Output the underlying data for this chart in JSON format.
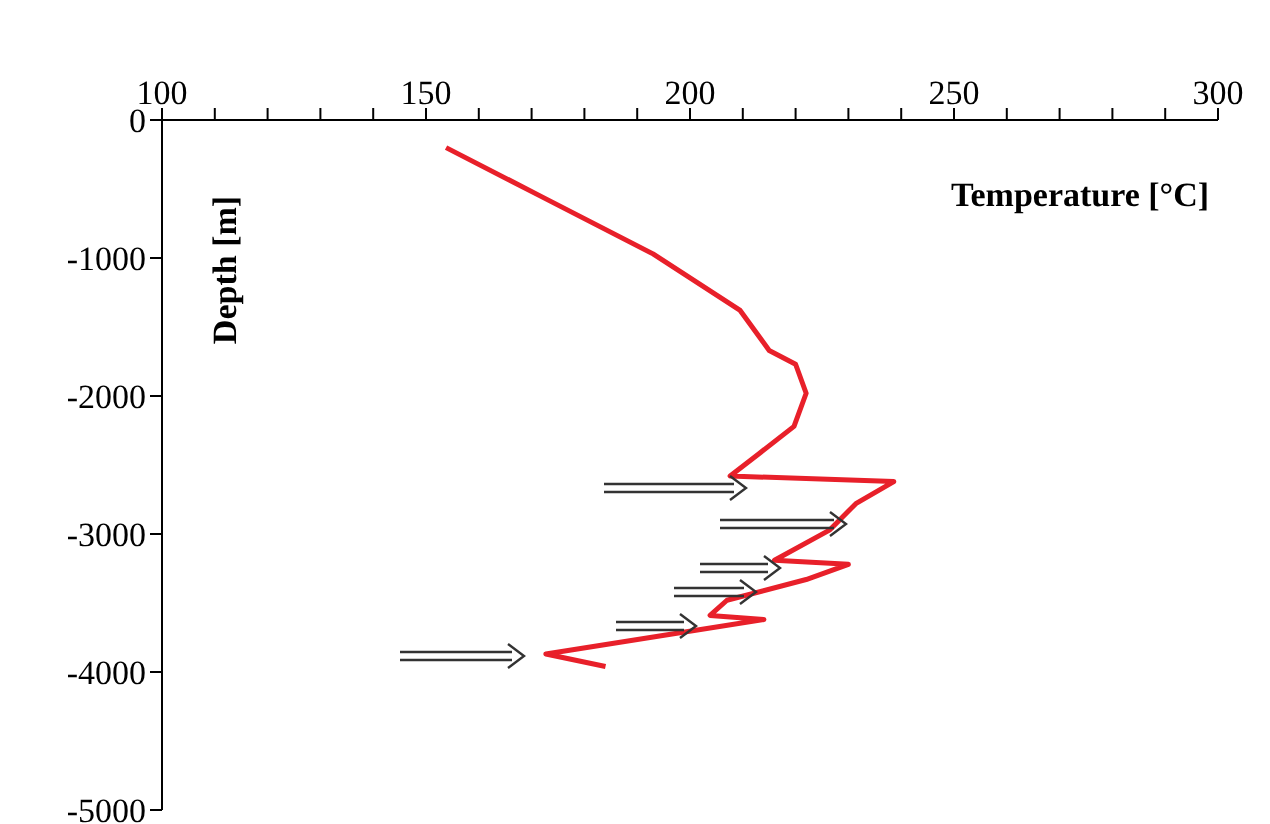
{
  "chart_data": {
    "type": "line",
    "xlabel": "Temperature [°C]",
    "ylabel": "Depth [m]",
    "x": [
      153.8,
      171.6,
      193,
      209.5,
      215,
      220,
      222,
      219.7,
      213,
      207.6,
      238.6,
      231.4,
      226.5,
      216,
      230,
      222,
      207,
      203.8,
      214,
      172.7,
      184
    ],
    "series": [
      {
        "color": "#e8202a",
        "values": [
          -200,
          -550,
          -970,
          -1380,
          -1670,
          -1770,
          -1980,
          -2220,
          -2420,
          -2580,
          -2620,
          -2780,
          -2970,
          -3190,
          -3220,
          -3330,
          -3480,
          -3590,
          -3620,
          -3870,
          -3960
        ]
      }
    ],
    "xlim": [
      100,
      300
    ],
    "xticks": [
      100,
      {
        "value": 110,
        "label": null
      },
      {
        "value": 120,
        "label": null
      },
      {
        "value": 130,
        "label": null
      },
      {
        "value": 140,
        "label": null
      },
      150,
      {
        "value": 160,
        "label": null
      },
      {
        "value": 170,
        "label": null
      },
      {
        "value": 180,
        "label": null
      },
      {
        "value": 190,
        "label": null
      },
      200,
      {
        "value": 210,
        "label": null
      },
      {
        "value": 220,
        "label": null
      },
      {
        "value": 230,
        "label": null
      },
      {
        "value": 240,
        "label": null
      },
      250,
      {
        "value": 260,
        "label": null
      },
      {
        "value": 270,
        "label": null
      },
      {
        "value": 280,
        "label": null
      },
      {
        "value": 290,
        "label": null
      },
      300
    ],
    "ylim": [
      -5000,
      0
    ],
    "yticks": [
      0,
      -1000,
      -2000,
      -3000,
      -4000,
      -5000
    ],
    "grid": false,
    "legend": false,
    "marker": "none",
    "line_style": "solid"
  }
}
